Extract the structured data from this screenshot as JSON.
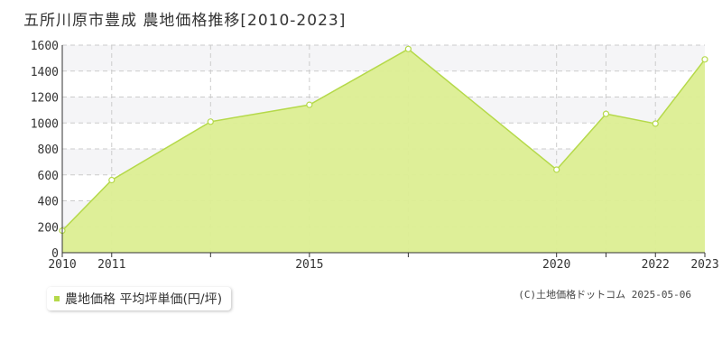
{
  "chart_data": {
    "type": "area",
    "title": "五所川原市豊成 農地価格推移[2010-2023]",
    "x": [
      2010,
      2011,
      2013,
      2015,
      2017,
      2020,
      2021,
      2022,
      2023
    ],
    "x_tick_labels": [
      "2010",
      "2011",
      "",
      "2015",
      "",
      "2020",
      "",
      "2022",
      "2023"
    ],
    "series": [
      {
        "name": "農地価格 平均坪単価(円/坪)",
        "values": [
          170,
          560,
          1010,
          1140,
          1570,
          640,
          1070,
          995,
          1490
        ]
      }
    ],
    "ylim": [
      0,
      1600
    ],
    "y_ticks": [
      0,
      200,
      400,
      600,
      800,
      1000,
      1200,
      1400,
      1600
    ],
    "grid": true,
    "legend_position": "bottom-left",
    "colors": {
      "fill": "#dcee92",
      "line": "#b5d94a",
      "band": "#f5f5f7",
      "grid": "#cccccc"
    }
  },
  "copyright": "(C)土地価格ドットコム 2025-05-06"
}
